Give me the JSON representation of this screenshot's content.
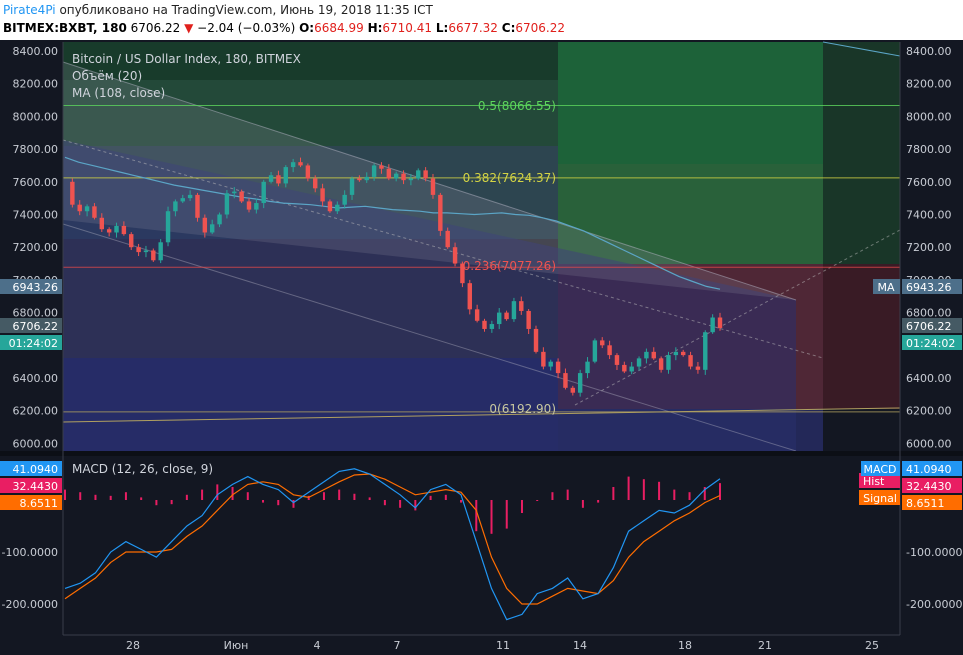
{
  "header": {
    "brand": "Pirate4Pi",
    "published": " опубликовано на TradingView.com, Июнь 19, 2018 11:35 ICT",
    "symbol": "BITMEX:BXBT, 180",
    "last": "6706.22",
    "change": "−2.04 (−0.03%)",
    "o_label": "O:",
    "o": "6684.99",
    "h_label": "H:",
    "h": "6710.41",
    "l_label": "L:",
    "l": "6677.32",
    "c_label": "C:",
    "c": "6706.22"
  },
  "legend": {
    "title": "Bitcoin / US Dollar Index, 180, BITMEX",
    "volume": "Объём (20)",
    "ma": "MA (108, close)",
    "macd": "MACD (12, 26, close, 9)"
  },
  "colors": {
    "background": "#131722",
    "up": "#26a69a",
    "down": "#ef5350",
    "ma": "#5ba5c6",
    "macd": "#2196f3",
    "signal": "#ff6d00",
    "histogram": "#e91e63",
    "fib0": "#b0a060",
    "fib236": "#e04a4a",
    "fib382": "#d4d444",
    "fib5": "#5cd65c"
  },
  "badges": {
    "ma_left": "6943.26",
    "price_left": "6706.22",
    "timer_left": "01:24:02",
    "ma_right_tag": "MA",
    "ma_right": "6943.26",
    "price_right": "6706.22",
    "timer_right": "01:24:02",
    "macd_left": "41.0940",
    "hist_left": "32.4430",
    "signal_left": "8.6511",
    "macd_tag": "MACD",
    "hist_tag": "Hist",
    "signal_tag": "Signal",
    "macd_right": "41.0940",
    "hist_right": "32.4430",
    "signal_right": "8.6511"
  },
  "fib_labels": {
    "f0": "0(6192.90)",
    "f236": "0.236(7077.26)",
    "f382": "0.382(7624.37)",
    "f5": "0.5(8066.55)"
  },
  "chart_data": [
    {
      "type": "candlestick",
      "title": "Bitcoin / US Dollar Index, 180, BITMEX",
      "y_ticks": [
        "8400.00",
        "8200.00",
        "8000.00",
        "7800.00",
        "7600.00",
        "7400.00",
        "7200.00",
        "7000.00",
        "6800.00",
        "6600.00",
        "6400.00",
        "6200.00",
        "6000.00"
      ],
      "ylim": [
        5930,
        8480
      ],
      "x_ticks": [
        "28",
        "Июн",
        "4",
        "7",
        "11",
        "14",
        "18",
        "21",
        "25"
      ],
      "fib_levels": [
        6192.9,
        7077.26,
        7624.37,
        8066.55
      ],
      "ma_last": 6943.26,
      "close_last": 6706.22,
      "path": [
        7600,
        7460,
        7420,
        7450,
        7380,
        7310,
        7290,
        7330,
        7280,
        7200,
        7170,
        7180,
        7120,
        7230,
        7420,
        7480,
        7500,
        7520,
        7380,
        7290,
        7340,
        7400,
        7530,
        7540,
        7480,
        7430,
        7470,
        7600,
        7640,
        7590,
        7690,
        7720,
        7700,
        7620,
        7560,
        7480,
        7420,
        7460,
        7520,
        7620,
        7610,
        7630,
        7700,
        7680,
        7620,
        7650,
        7610,
        7620,
        7670,
        7620,
        7520,
        7300,
        7200,
        7100,
        6980,
        6820,
        6750,
        6700,
        6730,
        6800,
        6760,
        6870,
        6810,
        6700,
        6560,
        6470,
        6500,
        6430,
        6340,
        6310,
        6430,
        6500,
        6630,
        6600,
        6540,
        6480,
        6440,
        6470,
        6520,
        6560,
        6520,
        6450,
        6540,
        6560,
        6540,
        6470,
        6450,
        6680,
        6770,
        6706
      ],
      "ma": [
        7750,
        7720,
        7700,
        7680,
        7660,
        7640,
        7620,
        7600,
        7580,
        7565,
        7550,
        7535,
        7520,
        7505,
        7495,
        7480,
        7470,
        7465,
        7460,
        7450,
        7440,
        7445,
        7450,
        7440,
        7430,
        7425,
        7420,
        7410,
        7410,
        7405,
        7400,
        7405,
        7410,
        7400,
        7395,
        7380,
        7360,
        7330,
        7300,
        7260,
        7220,
        7180,
        7140,
        7100,
        7060,
        7020,
        6990,
        6960,
        6943
      ]
    },
    {
      "type": "macd",
      "title": "MACD (12, 26, close, 9)",
      "y_ticks": [
        "-100.0000",
        "-200.0000"
      ],
      "ylim": [
        -260,
        100
      ],
      "last": {
        "macd": 41.094,
        "histogram": 32.443,
        "signal": 8.6511
      },
      "macd": [
        -170,
        -160,
        -140,
        -100,
        -80,
        -95,
        -110,
        -80,
        -50,
        -30,
        10,
        30,
        45,
        30,
        20,
        -5,
        15,
        35,
        55,
        60,
        50,
        30,
        10,
        -15,
        20,
        30,
        10,
        -80,
        -170,
        -230,
        -220,
        -180,
        -170,
        -150,
        -190,
        -180,
        -130,
        -60,
        -40,
        -20,
        -25,
        -10,
        20,
        41
      ],
      "signal": [
        -190,
        -170,
        -150,
        -120,
        -100,
        -100,
        -100,
        -95,
        -70,
        -50,
        -20,
        10,
        30,
        35,
        30,
        10,
        5,
        20,
        35,
        48,
        50,
        40,
        25,
        10,
        15,
        20,
        15,
        -20,
        -110,
        -170,
        -200,
        -200,
        -185,
        -170,
        -175,
        -180,
        -155,
        -110,
        -80,
        -60,
        -40,
        -25,
        -5,
        8.65
      ],
      "histogram": [
        20,
        15,
        10,
        8,
        15,
        5,
        -10,
        -8,
        10,
        20,
        30,
        25,
        15,
        -5,
        -10,
        -15,
        8,
        15,
        20,
        12,
        5,
        -10,
        -15,
        -20,
        8,
        10,
        -5,
        -60,
        -65,
        -55,
        -25,
        0,
        15,
        20,
        -15,
        -5,
        25,
        45,
        40,
        35,
        20,
        15,
        25,
        32.44
      ]
    }
  ]
}
